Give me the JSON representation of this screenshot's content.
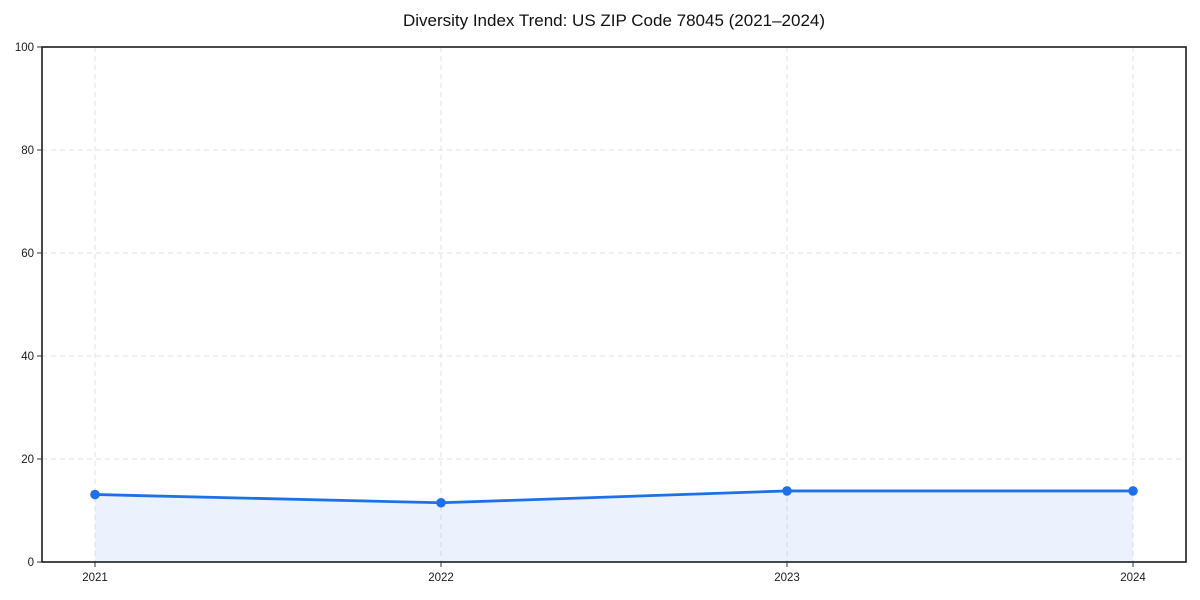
{
  "chart_data": {
    "type": "area",
    "title": "Diversity Index Trend: US ZIP Code 78045 (2021–2024)",
    "categories": [
      "2021",
      "2022",
      "2023",
      "2024"
    ],
    "series": [
      {
        "name": "Diversity Index",
        "values": [
          13.1,
          11.5,
          13.8,
          13.8
        ]
      }
    ],
    "xlabel": "",
    "ylabel": "",
    "ylim": [
      0,
      100
    ],
    "ytick_step": 20,
    "yticks": [
      0,
      20,
      40,
      60,
      80,
      100
    ],
    "grid": true,
    "grid_style": "dashed",
    "legend": false,
    "marker": "circle",
    "colors": {
      "line": "#1e70e8",
      "marker": "#1e70e8",
      "fill_opacity": 0.09,
      "grid": "#e2e2e2",
      "border": "#1c1c1c",
      "tick": "#333333",
      "text": "#111111",
      "background": "#ffffff"
    }
  }
}
